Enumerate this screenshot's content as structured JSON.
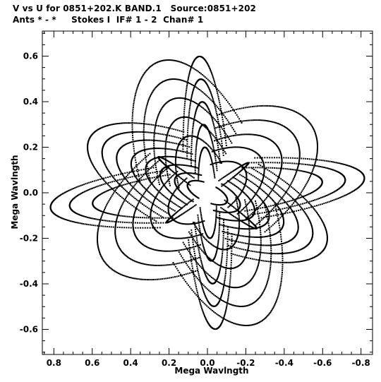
{
  "header": {
    "line1": "V vs U for 0851+202.K BAND.1   Source:0851+202",
    "line2": "Ants * - *     Stokes I  IF# 1 - 2  Chan# 1"
  },
  "chart_data": {
    "type": "scatter",
    "xlabel": "Mega Wavlngth",
    "ylabel": "Mega Wavlngth",
    "xlim": [
      0.86,
      -0.86
    ],
    "ylim": [
      -0.71,
      0.71
    ],
    "x_ticks": [
      0.8,
      0.6,
      0.4,
      0.2,
      0.0,
      -0.2,
      -0.4,
      -0.6,
      -0.8
    ],
    "x_tick_labels": [
      "0.8",
      "0.6",
      "0.4",
      "0.2",
      "0.0",
      "-0.2",
      "-0.4",
      "-0.6",
      "-0.8"
    ],
    "y_ticks": [
      0.6,
      0.4,
      0.2,
      0.0,
      -0.2,
      -0.4,
      -0.6
    ],
    "y_tick_labels": [
      "0.6",
      "0.4",
      "0.2",
      "0.0",
      "-0.2",
      "-0.4",
      "-0.6"
    ],
    "grid": false,
    "marker_color": "#000000",
    "tracks": [
      {
        "a": 0.66,
        "b": 0.22,
        "angle": 0.35,
        "n": 150
      },
      {
        "a": 0.58,
        "b": 0.19,
        "angle": 0.35,
        "n": 135
      },
      {
        "a": 0.5,
        "b": 0.165,
        "angle": 0.35,
        "n": 120
      },
      {
        "a": 0.42,
        "b": 0.14,
        "angle": 0.35,
        "n": 110
      },
      {
        "a": 0.34,
        "b": 0.115,
        "angle": 0.35,
        "n": 95
      },
      {
        "a": 0.26,
        "b": 0.09,
        "angle": 0.35,
        "n": 85
      },
      {
        "a": 0.18,
        "b": 0.065,
        "angle": 0.35,
        "n": 70
      },
      {
        "a": 0.11,
        "b": 0.04,
        "angle": 0.35,
        "n": 55
      },
      {
        "a": 0.62,
        "b": 0.3,
        "angle": -0.45,
        "n": 145
      },
      {
        "a": 0.52,
        "b": 0.25,
        "angle": -0.45,
        "n": 130
      },
      {
        "a": 0.42,
        "b": 0.2,
        "angle": -0.45,
        "n": 115
      },
      {
        "a": 0.32,
        "b": 0.16,
        "angle": -0.45,
        "n": 100
      },
      {
        "a": 0.22,
        "b": 0.11,
        "angle": -0.45,
        "n": 80
      },
      {
        "a": 0.63,
        "b": 0.31,
        "angle": 1.12,
        "n": 140
      },
      {
        "a": 0.54,
        "b": 0.26,
        "angle": 1.12,
        "n": 125
      },
      {
        "a": 0.45,
        "b": 0.22,
        "angle": 1.12,
        "n": 110
      },
      {
        "a": 0.36,
        "b": 0.17,
        "angle": 1.12,
        "n": 95
      },
      {
        "a": 0.27,
        "b": 0.13,
        "angle": 1.12,
        "n": 80
      },
      {
        "a": 0.6,
        "b": 0.12,
        "angle": 1.5,
        "n": 130
      },
      {
        "a": 0.5,
        "b": 0.1,
        "angle": 1.5,
        "n": 110
      },
      {
        "a": 0.4,
        "b": 0.08,
        "angle": 1.5,
        "n": 95
      },
      {
        "a": 0.3,
        "b": 0.06,
        "angle": 1.5,
        "n": 80
      },
      {
        "a": 0.2,
        "b": 0.045,
        "angle": 1.5,
        "n": 65
      },
      {
        "a": 0.82,
        "b": 0.14,
        "angle": -0.08,
        "n": 150
      },
      {
        "a": 0.72,
        "b": 0.12,
        "angle": -0.08,
        "n": 135
      },
      {
        "a": 0.6,
        "b": 0.1,
        "angle": -0.08,
        "n": 120
      },
      {
        "a": 0.3,
        "b": 0.02,
        "angle": 0.55,
        "n": 90
      },
      {
        "a": 0.25,
        "b": 0.015,
        "angle": -0.55,
        "n": 80
      }
    ]
  }
}
